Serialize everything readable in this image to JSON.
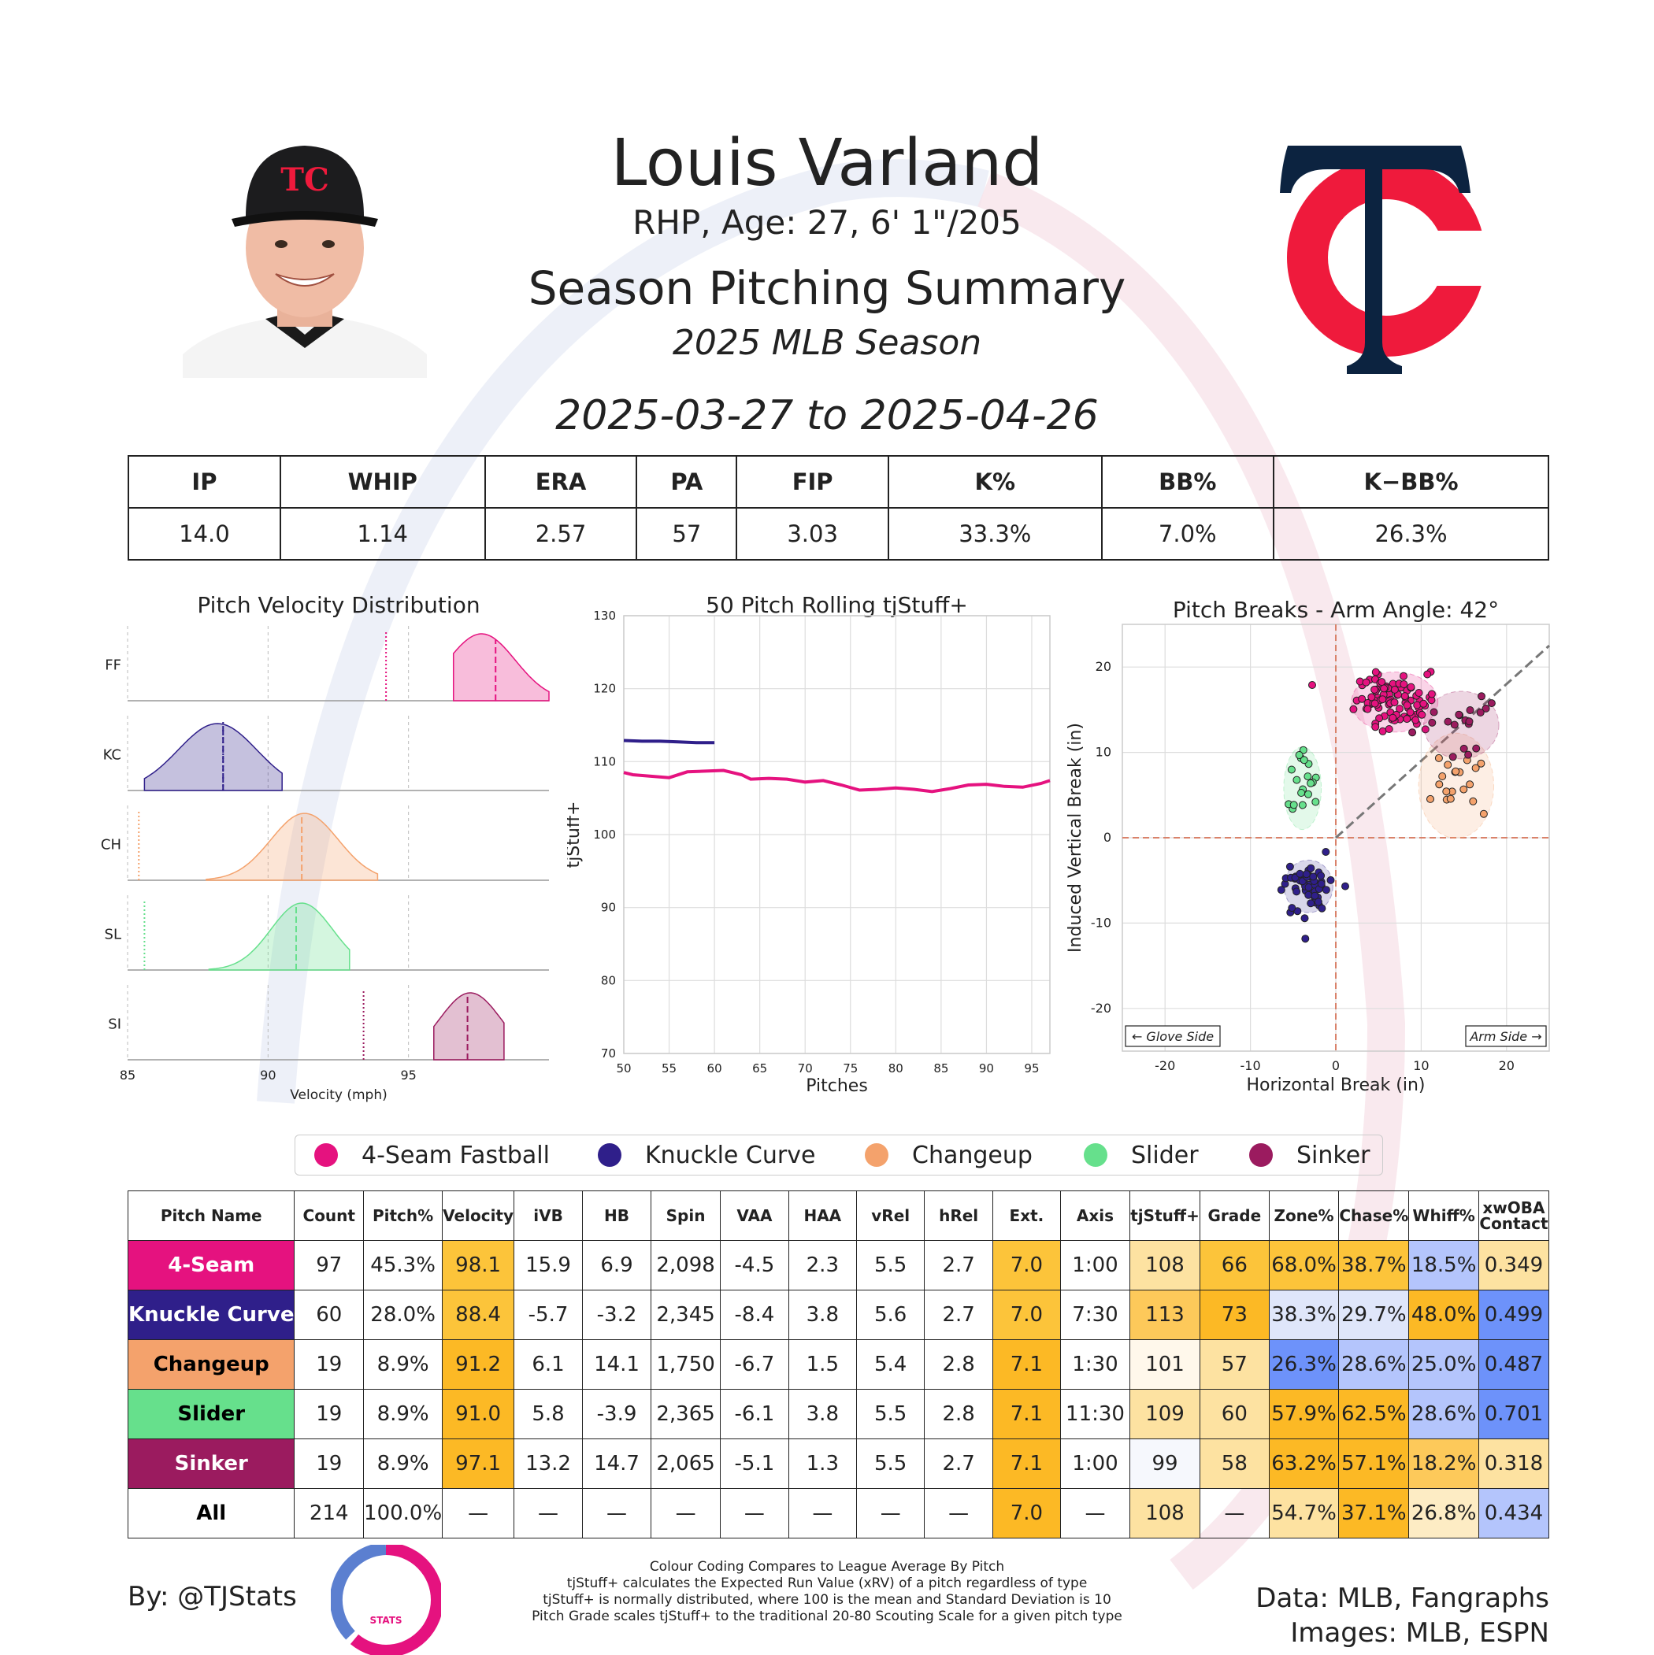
{
  "header": {
    "name": "Louis Varland",
    "info": "RHP, Age: 27, 6' 1\"/205",
    "title": "Season Pitching Summary",
    "season": "2025 MLB Season",
    "date_range": "2025-03-27 to 2025-04-26"
  },
  "stat_line": {
    "headers": [
      "IP",
      "WHIP",
      "ERA",
      "PA",
      "FIP",
      "K%",
      "BB%",
      "K−BB%"
    ],
    "values": [
      "14.0",
      "1.14",
      "2.57",
      "57",
      "3.03",
      "33.3%",
      "7.0%",
      "26.3%"
    ]
  },
  "colors": {
    "4-Seam Fastball": "#e5127f",
    "Knuckle Curve": "#2f1f8a",
    "Changeup": "#f4a26c",
    "Slider": "#66e08c",
    "Sinker": "#9b1b5f",
    "team_navy": "#0c2340",
    "team_red": "#ef1a3c"
  },
  "legend": [
    "4-Seam Fastball",
    "Knuckle Curve",
    "Changeup",
    "Slider",
    "Sinker"
  ],
  "pitch_table": {
    "headers": [
      "Pitch Name",
      "Count",
      "Pitch%",
      "Velocity",
      "iVB",
      "HB",
      "Spin",
      "VAA",
      "HAA",
      "vRel",
      "hRel",
      "Ext.",
      "Axis",
      "tjStuff+",
      "Grade",
      "Zone%",
      "Chase%",
      "Whiff%",
      "xwOBA Contact"
    ],
    "rows": [
      {
        "name": "4-Seam",
        "bg": "#e5127f",
        "fg": "#ffffff",
        "cells": [
          "97",
          "45.3%",
          "98.1",
          "15.9",
          "6.9",
          "2,098",
          "-4.5",
          "2.3",
          "5.5",
          "2.7",
          "7.0",
          "1:00",
          "108",
          "66",
          "68.0%",
          "38.7%",
          "18.5%",
          "0.349"
        ],
        "shade": [
          "",
          "",
          "#fcc43a",
          "",
          "",
          "",
          "",
          "",
          "",
          "",
          "#fcc43a",
          "",
          "#fde2a1",
          "#fcc43a",
          "#fcc43a",
          "#fcc43a",
          "#b4c5fc",
          "#fde2a1"
        ]
      },
      {
        "name": "Knuckle Curve",
        "bg": "#2f1f8a",
        "fg": "#ffffff",
        "cells": [
          "60",
          "28.0%",
          "88.4",
          "-5.7",
          "-3.2",
          "2,345",
          "-8.4",
          "3.8",
          "5.6",
          "2.7",
          "7.0",
          "7:30",
          "113",
          "73",
          "38.3%",
          "29.7%",
          "48.0%",
          "0.499"
        ],
        "shade": [
          "",
          "",
          "#fcc43a",
          "",
          "",
          "",
          "",
          "",
          "",
          "",
          "#fcc43a",
          "",
          "#fdc95a",
          "#fcb925",
          "#dfe6fa",
          "#dfe6fa",
          "#fcb925",
          "#6d92fa"
        ]
      },
      {
        "name": "Changeup",
        "bg": "#f4a26c",
        "fg": "#000000",
        "cells": [
          "19",
          "8.9%",
          "91.2",
          "6.1",
          "14.1",
          "1,750",
          "-6.7",
          "1.5",
          "5.4",
          "2.8",
          "7.1",
          "1:30",
          "101",
          "57",
          "26.3%",
          "28.6%",
          "25.0%",
          "0.487"
        ],
        "shade": [
          "",
          "",
          "#fcb925",
          "",
          "",
          "",
          "",
          "",
          "",
          "",
          "#fcb925",
          "",
          "#fff8eb",
          "#fde2a1",
          "#6d92fa",
          "#b4c5fc",
          "#b4c5fc",
          "#6d92fa"
        ]
      },
      {
        "name": "Slider",
        "bg": "#66e08c",
        "fg": "#000000",
        "cells": [
          "19",
          "8.9%",
          "91.0",
          "5.8",
          "-3.9",
          "2,365",
          "-6.1",
          "3.8",
          "5.5",
          "2.8",
          "7.1",
          "11:30",
          "109",
          "60",
          "57.9%",
          "62.5%",
          "28.6%",
          "0.701"
        ],
        "shade": [
          "",
          "",
          "#fcb925",
          "",
          "",
          "",
          "",
          "",
          "",
          "",
          "#fcb925",
          "",
          "#fde2a1",
          "#fde2a1",
          "#fcb925",
          "#fcb925",
          "#b4c5fc",
          "#6d92fa"
        ]
      },
      {
        "name": "Sinker",
        "bg": "#9b1b5f",
        "fg": "#ffffff",
        "cells": [
          "19",
          "8.9%",
          "97.1",
          "13.2",
          "14.7",
          "2,065",
          "-5.1",
          "1.3",
          "5.5",
          "2.7",
          "7.1",
          "1:00",
          "99",
          "58",
          "63.2%",
          "57.1%",
          "18.2%",
          "0.318"
        ],
        "shade": [
          "",
          "",
          "#fcb925",
          "",
          "",
          "",
          "",
          "",
          "",
          "",
          "#fcb925",
          "",
          "#f6f8fd",
          "#fde2a1",
          "#fcb925",
          "#fcb925",
          "#fdc95a",
          "#fde2a1"
        ]
      },
      {
        "name": "All",
        "bg": "#ffffff",
        "fg": "#000000",
        "cells": [
          "214",
          "100.0%",
          "—",
          "—",
          "—",
          "—",
          "—",
          "—",
          "—",
          "—",
          "7.0",
          "—",
          "108",
          "—",
          "54.7%",
          "37.1%",
          "26.8%",
          "0.434"
        ],
        "shade": [
          "",
          "",
          "",
          "",
          "",
          "",
          "",
          "",
          "",
          "",
          "#fcb925",
          "",
          "#fde2a1",
          "",
          "#fde2a1",
          "#fcb925",
          "#fdecc4",
          "#b4c5fc"
        ]
      }
    ]
  },
  "footer": {
    "by": "By: @TJStats",
    "data_source": "Data: MLB, Fangraphs",
    "image_source": "Images: MLB, ESPN",
    "notes": [
      "Colour Coding Compares to League Average By Pitch",
      "tjStuff+ calculates the Expected Run Value (xRV) of a pitch regardless of type",
      "tjStuff+ is normally distributed, where 100 is the mean and Standard Deviation is 10",
      "Pitch Grade scales tjStuff+ to the traditional 20-80 Scouting Scale for a given pitch type"
    ],
    "logo_text": "STATS"
  },
  "chart_data": [
    {
      "type": "area",
      "title": "Pitch Velocity Distribution",
      "xlabel": "Velocity (mph)",
      "xlim": [
        85,
        100
      ],
      "xticks": [
        85,
        90,
        95
      ],
      "series": [
        {
          "name": "FF",
          "color": "#e5127f",
          "mean": 98.1,
          "league_avg": 94.2,
          "range": [
            96.6,
            100
          ],
          "peak": 97.6,
          "sd": 1.2
        },
        {
          "name": "KC",
          "color": "#2f1f8a",
          "mean": 88.4,
          "league_avg": 88.4,
          "range": [
            85.6,
            90.5
          ],
          "peak": 88.2,
          "sd": 1.4
        },
        {
          "name": "CH",
          "color": "#f4a26c",
          "mean": 91.2,
          "league_avg": 85.4,
          "range": [
            87.8,
            93.9
          ],
          "peak": 91.3,
          "sd": 1.2
        },
        {
          "name": "SL",
          "color": "#66e08c",
          "mean": 91.0,
          "league_avg": 85.6,
          "range": [
            87.9,
            92.9
          ],
          "peak": 91.2,
          "sd": 1.1
        },
        {
          "name": "SI",
          "color": "#9b1b5f",
          "mean": 97.1,
          "league_avg": 93.4,
          "range": [
            95.9,
            98.4
          ],
          "peak": 97.2,
          "sd": 1.1
        }
      ]
    },
    {
      "type": "line",
      "title": "50 Pitch Rolling tjStuff+",
      "xlabel": "Pitches",
      "ylabel": "tjStuff+",
      "xlim": [
        50,
        97
      ],
      "ylim": [
        70,
        130
      ],
      "xticks": [
        50,
        55,
        60,
        65,
        70,
        75,
        80,
        85,
        90,
        95
      ],
      "yticks": [
        70,
        80,
        90,
        100,
        110,
        120,
        130
      ],
      "series": [
        {
          "name": "Knuckle Curve",
          "color": "#2f1f8a",
          "x": [
            50,
            52,
            54,
            56,
            58,
            60
          ],
          "y": [
            112.9,
            112.8,
            112.8,
            112.7,
            112.6,
            112.6
          ]
        },
        {
          "name": "4-Seam Fastball",
          "color": "#e5127f",
          "x": [
            50,
            51,
            53,
            55,
            57,
            59,
            61,
            63,
            64,
            66,
            68,
            70,
            72,
            74,
            76,
            78,
            80,
            82,
            84,
            86,
            88,
            90,
            92,
            94,
            96,
            97
          ],
          "y": [
            108.5,
            108.2,
            108.0,
            107.8,
            108.6,
            108.7,
            108.8,
            108.2,
            107.6,
            107.7,
            107.6,
            107.2,
            107.4,
            106.8,
            106.1,
            106.2,
            106.4,
            106.2,
            105.9,
            106.3,
            106.8,
            106.9,
            106.6,
            106.5,
            107.0,
            107.4
          ]
        }
      ]
    },
    {
      "type": "scatter",
      "title": "Pitch Breaks - Arm Angle: 42°",
      "xlabel": "Horizontal Break (in)",
      "ylabel": "Induced Vertical Break (in)",
      "xlim": [
        -25,
        25
      ],
      "ylim": [
        -25,
        25
      ],
      "xticks": [
        -20,
        -10,
        0,
        10,
        20
      ],
      "yticks": [
        -20,
        -10,
        0,
        10,
        20
      ],
      "annotations": [
        "← Glove Side",
        "Arm Side →"
      ],
      "arm_angle_deg": 42,
      "series": [
        {
          "name": "4-Seam Fastball",
          "color": "#e5127f",
          "center": [
            6.9,
            15.9
          ],
          "spread": [
            2.3,
            1.6
          ],
          "count": 97
        },
        {
          "name": "Knuckle Curve",
          "color": "#2f1f8a",
          "center": [
            -3.2,
            -5.7
          ],
          "spread": [
            1.3,
            1.4
          ],
          "count": 60
        },
        {
          "name": "Changeup",
          "color": "#f4a26c",
          "center": [
            14.1,
            6.1
          ],
          "spread": [
            2.0,
            2.8
          ],
          "count": 19
        },
        {
          "name": "Slider",
          "color": "#66e08c",
          "center": [
            -3.9,
            5.8
          ],
          "spread": [
            1.0,
            2.2
          ],
          "count": 19
        },
        {
          "name": "Sinker",
          "color": "#9b1b5f",
          "center": [
            14.7,
            13.2
          ],
          "spread": [
            2.0,
            1.8
          ],
          "count": 19
        }
      ]
    }
  ]
}
